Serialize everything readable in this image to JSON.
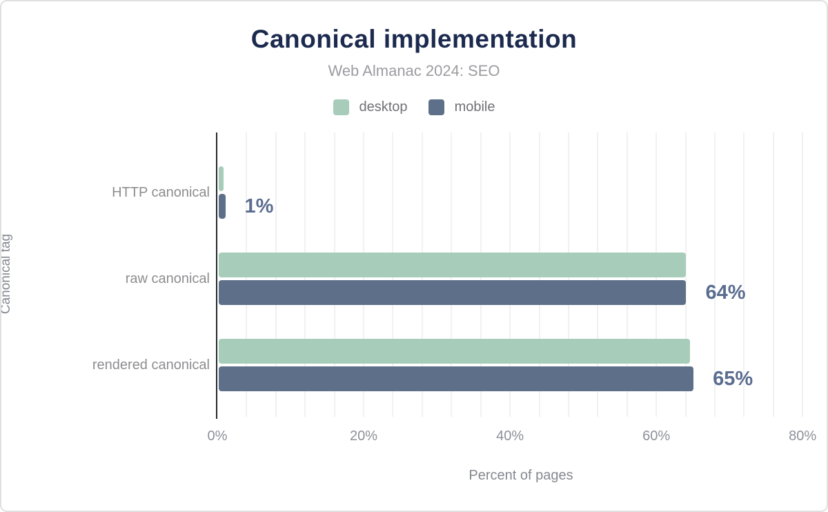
{
  "chart_data": {
    "type": "bar",
    "orientation": "horizontal",
    "title": "Canonical implementation",
    "subtitle": "Web Almanac 2024: SEO",
    "xlabel": "Percent of pages",
    "ylabel": "Canonical tag",
    "categories": [
      "HTTP canonical",
      "raw canonical",
      "rendered canonical"
    ],
    "series": [
      {
        "name": "desktop",
        "color": "#a7ccba",
        "values": [
          0.7,
          63.9,
          64.4
        ]
      },
      {
        "name": "mobile",
        "color": "#5e7089",
        "values": [
          0.9,
          63.9,
          64.9
        ]
      }
    ],
    "value_labels": [
      "1%",
      "64%",
      "65%"
    ],
    "x_ticks": [
      {
        "value": 0,
        "label": "0%"
      },
      {
        "value": 20,
        "label": "20%"
      },
      {
        "value": 40,
        "label": "40%"
      },
      {
        "value": 60,
        "label": "60%"
      },
      {
        "value": 80,
        "label": "80%"
      }
    ],
    "xlim": [
      0,
      83
    ],
    "gridline_step": 4,
    "grid": true,
    "legend_position": "top"
  },
  "colors": {
    "title": "#1b2a4e",
    "subtitle": "#9c9ca1",
    "value_label": "#5a6c8f",
    "axis_line": "#26262e",
    "gridline": "#f1f1f3"
  }
}
